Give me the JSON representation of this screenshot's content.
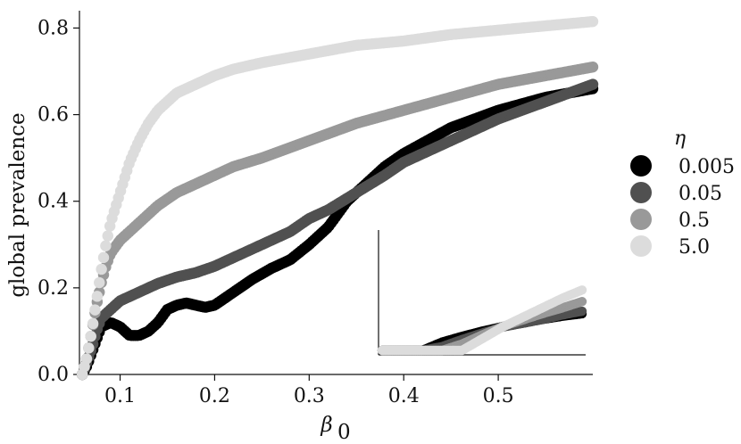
{
  "chart_data": {
    "type": "scatter",
    "title": "",
    "xlabel": "β",
    "xlabel_subscript": "0",
    "ylabel": "global prevalence",
    "xlim": [
      0.057,
      0.6
    ],
    "ylim": [
      0.0,
      0.84
    ],
    "xticks": [
      0.1,
      0.2,
      0.3,
      0.4,
      0.5
    ],
    "xtick_labels": [
      "0.1",
      "0.2",
      "0.3",
      "0.4",
      "0.5"
    ],
    "yticks": [
      0.0,
      0.2,
      0.4,
      0.6,
      0.8
    ],
    "ytick_labels": [
      "0.0",
      "0.2",
      "0.4",
      "0.6",
      "0.8"
    ],
    "grid": false,
    "legend": {
      "title": "η",
      "position": "right"
    },
    "series": [
      {
        "name": "0.005",
        "color": "#000000",
        "x": [
          0.06,
          0.065,
          0.07,
          0.075,
          0.08,
          0.09,
          0.1,
          0.11,
          0.12,
          0.13,
          0.14,
          0.15,
          0.16,
          0.17,
          0.18,
          0.19,
          0.2,
          0.22,
          0.24,
          0.26,
          0.28,
          0.3,
          0.32,
          0.34,
          0.36,
          0.38,
          0.4,
          0.45,
          0.5,
          0.55,
          0.6
        ],
        "y": [
          0.0,
          0.02,
          0.05,
          0.08,
          0.11,
          0.12,
          0.11,
          0.09,
          0.09,
          0.1,
          0.12,
          0.15,
          0.16,
          0.165,
          0.16,
          0.155,
          0.16,
          0.19,
          0.22,
          0.245,
          0.265,
          0.3,
          0.34,
          0.4,
          0.44,
          0.48,
          0.51,
          0.57,
          0.61,
          0.64,
          0.66
        ]
      },
      {
        "name": "0.05",
        "color": "#505050",
        "x": [
          0.06,
          0.065,
          0.07,
          0.075,
          0.08,
          0.09,
          0.1,
          0.12,
          0.14,
          0.16,
          0.18,
          0.2,
          0.22,
          0.25,
          0.28,
          0.3,
          0.32,
          0.35,
          0.38,
          0.4,
          0.45,
          0.5,
          0.55,
          0.6
        ],
        "y": [
          0.0,
          0.03,
          0.06,
          0.1,
          0.13,
          0.15,
          0.17,
          0.19,
          0.21,
          0.225,
          0.235,
          0.25,
          0.27,
          0.3,
          0.33,
          0.36,
          0.38,
          0.42,
          0.46,
          0.49,
          0.54,
          0.59,
          0.63,
          0.67
        ]
      },
      {
        "name": "0.5",
        "color": "#999999",
        "x": [
          0.06,
          0.065,
          0.07,
          0.075,
          0.08,
          0.085,
          0.09,
          0.1,
          0.11,
          0.12,
          0.14,
          0.16,
          0.18,
          0.2,
          0.22,
          0.25,
          0.3,
          0.35,
          0.4,
          0.45,
          0.5,
          0.55,
          0.6
        ],
        "y": [
          0.0,
          0.04,
          0.1,
          0.16,
          0.21,
          0.25,
          0.28,
          0.31,
          0.33,
          0.35,
          0.39,
          0.42,
          0.44,
          0.46,
          0.48,
          0.5,
          0.54,
          0.58,
          0.61,
          0.64,
          0.67,
          0.69,
          0.71
        ]
      },
      {
        "name": "5.0",
        "color": "#dcdcdc",
        "x": [
          0.06,
          0.065,
          0.07,
          0.075,
          0.08,
          0.085,
          0.09,
          0.1,
          0.11,
          0.12,
          0.13,
          0.14,
          0.15,
          0.16,
          0.18,
          0.2,
          0.22,
          0.25,
          0.3,
          0.35,
          0.4,
          0.45,
          0.5,
          0.55,
          0.6
        ],
        "y": [
          0.0,
          0.04,
          0.1,
          0.17,
          0.24,
          0.3,
          0.35,
          0.42,
          0.49,
          0.54,
          0.58,
          0.61,
          0.63,
          0.65,
          0.67,
          0.69,
          0.705,
          0.72,
          0.74,
          0.76,
          0.77,
          0.785,
          0.795,
          0.805,
          0.815
        ]
      }
    ],
    "inset": {
      "type": "line",
      "description_axes": "no tick labels",
      "x": [
        0.0,
        0.2,
        0.3,
        0.4,
        0.5,
        0.6,
        0.7,
        0.8,
        0.9,
        1.0
      ],
      "series": [
        {
          "name": "0.005",
          "color": "#000000",
          "y": [
            0.0,
            0.0,
            0.13,
            0.22,
            0.3,
            0.37,
            0.42,
            0.48,
            0.53,
            0.57
          ]
        },
        {
          "name": "0.05",
          "color": "#505050",
          "y": [
            0.0,
            0.0,
            0.06,
            0.17,
            0.27,
            0.36,
            0.42,
            0.48,
            0.55,
            0.61
          ]
        },
        {
          "name": "0.5",
          "color": "#999999",
          "y": [
            0.0,
            0.0,
            0.0,
            0.1,
            0.24,
            0.37,
            0.47,
            0.57,
            0.66,
            0.76
          ]
        },
        {
          "name": "5.0",
          "color": "#dcdcdc",
          "y": [
            0.0,
            0.0,
            0.0,
            0.0,
            0.18,
            0.36,
            0.51,
            0.66,
            0.81,
            0.94
          ]
        }
      ]
    }
  }
}
